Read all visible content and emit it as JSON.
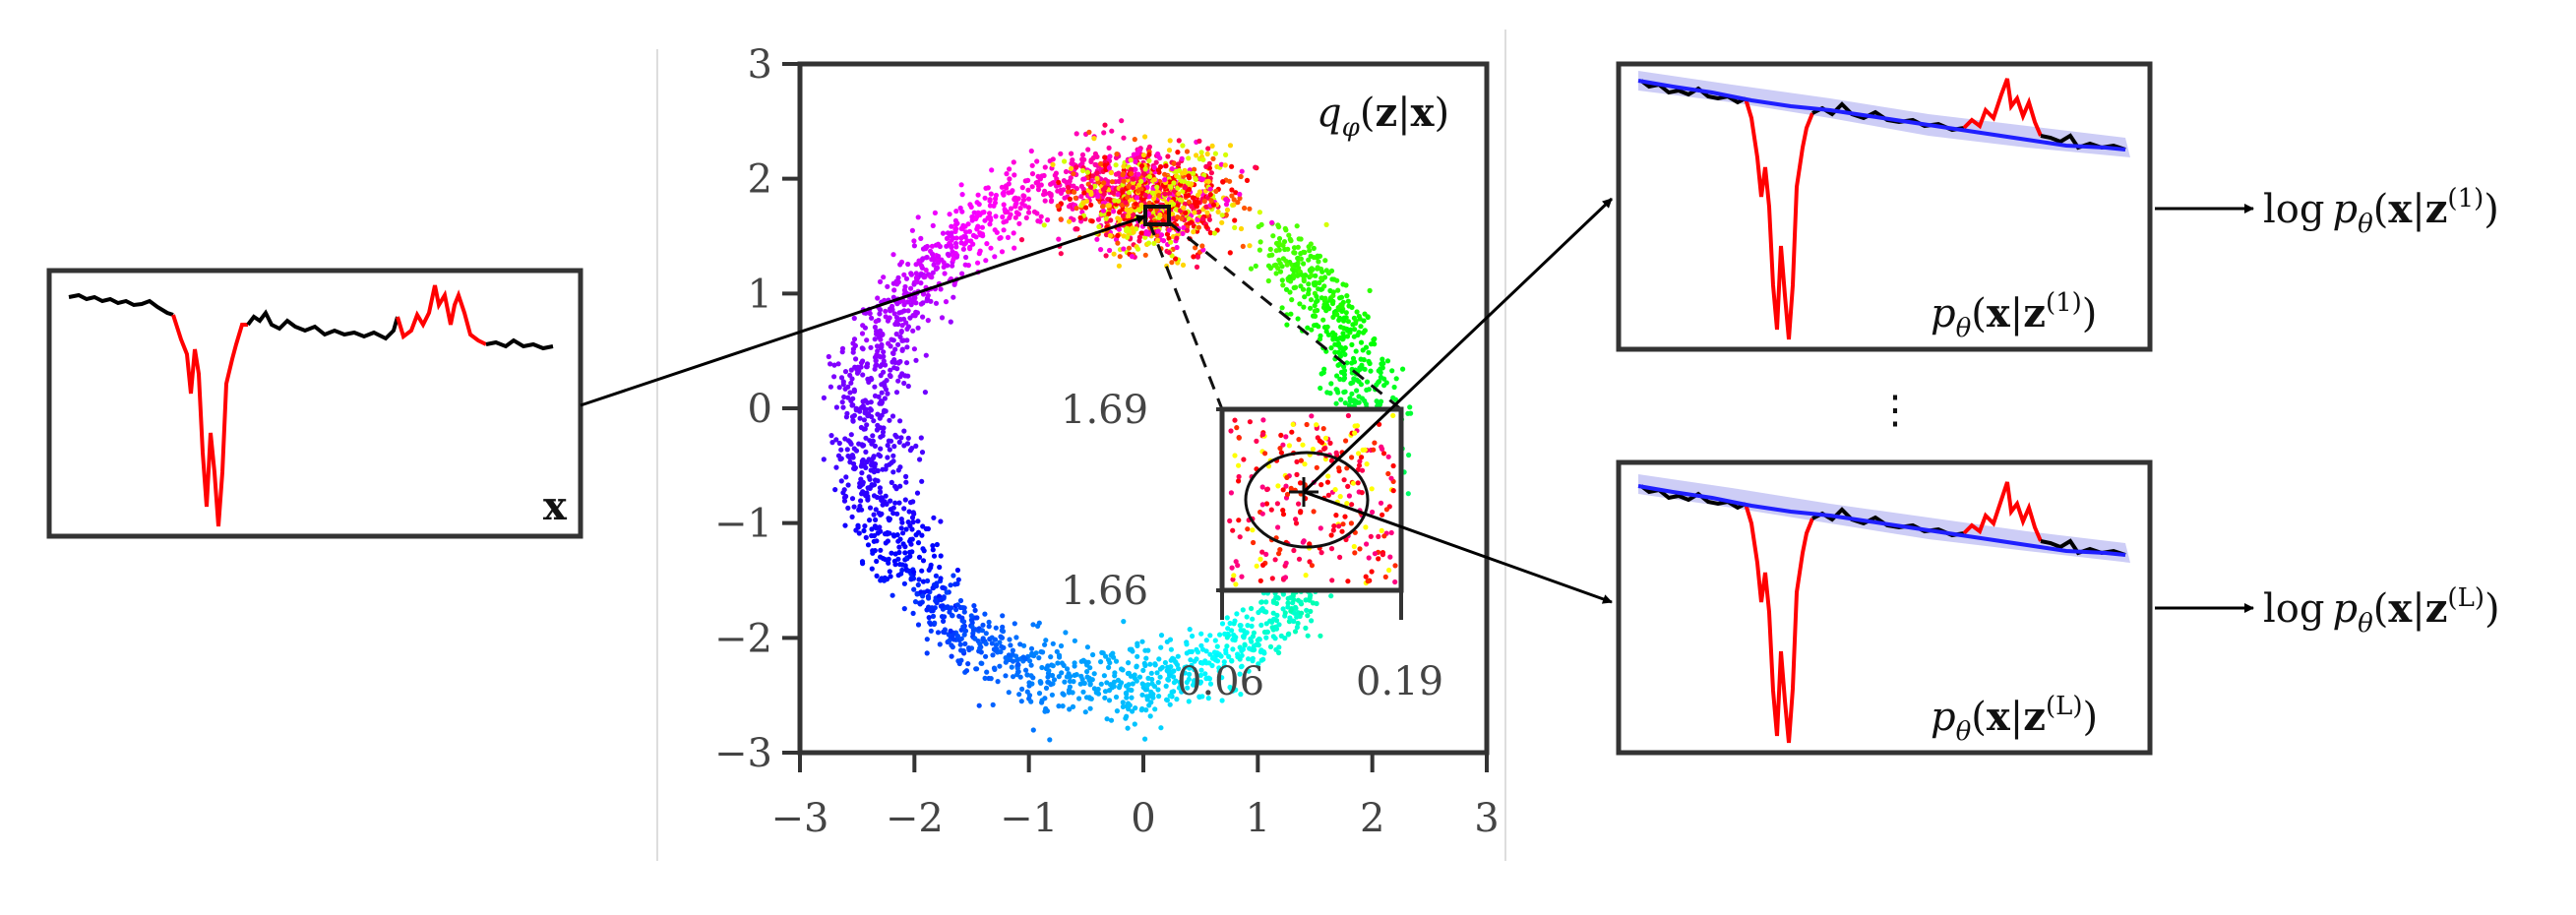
{
  "figure": {
    "input_label": "x",
    "latent_label": {
      "q": "q",
      "phi": "φ",
      "open": "(",
      "z": "z",
      "bar": "|",
      "x": "x",
      "close": ")"
    },
    "recon_top_label": {
      "p": "p",
      "theta": "θ",
      "open": "(",
      "x": "x",
      "bar": "|",
      "z": "z",
      "sup": "(1)",
      "close": ")"
    },
    "recon_bottom_label": {
      "p": "p",
      "theta": "θ",
      "open": "(",
      "x": "x",
      "bar": "|",
      "z": "z",
      "sup": "(L)",
      "close": ")"
    },
    "output_top": {
      "log": "log",
      "p": "p",
      "theta": "θ",
      "open": "(",
      "x": "x",
      "bar": "|",
      "z": "z",
      "sup": "(1)",
      "close": ")"
    },
    "output_bottom": {
      "log": "log",
      "p": "p",
      "theta": "θ",
      "open": "(",
      "x": "x",
      "bar": "|",
      "z": "z",
      "sup": "(L)",
      "close": ")"
    },
    "vertical_dots": "⋮"
  },
  "chart_data": [
    {
      "type": "scatter",
      "name": "latent-space",
      "title": "qφ(z|x)",
      "xlim": [
        -3,
        3
      ],
      "ylim": [
        -3,
        3
      ],
      "xticks": [
        "−3",
        "−2",
        "−1",
        "0",
        "1",
        "2",
        "3"
      ],
      "yticks": [
        "3",
        "2",
        "1",
        "0",
        "−1",
        "−2",
        "−3"
      ],
      "colormap": "hue (red → yellow → green → cyan → blue → magenta)",
      "shape": "ring of encoded windows, radius approx. 2.2, centred near (0, 0); dense cluster around (0.1, 1.7)",
      "grid": false,
      "legend": "none"
    },
    {
      "type": "scatter",
      "name": "zoom-inset",
      "xticks": [
        "0.06",
        "0.19"
      ],
      "yticks": [
        "1.69",
        "1.66"
      ],
      "xlim": [
        0.06,
        0.19
      ],
      "ylim": [
        1.66,
        1.69
      ]
    },
    {
      "type": "line",
      "name": "input-window",
      "series": [
        {
          "name": "normal",
          "color": "#000000",
          "values": [
            0.9,
            0.92,
            0.9,
            0.88,
            0.85,
            0.83,
            0.82,
            0.82,
            0.81,
            0.8,
            0.79,
            0.78,
            0.78,
            0.77,
            0.75,
            0.74,
            0.73,
            0.72,
            0.7,
            0.7,
            0.69
          ]
        },
        {
          "name": "anomaly-spike",
          "color": "#ff0000",
          "values": [
            0.82,
            -0.1,
            0.45,
            -0.5,
            0.4,
            -0.9,
            0.3,
            0.7
          ]
        },
        {
          "name": "anomaly-bump",
          "color": "#ff0000",
          "values": [
            0.72,
            0.8,
            0.76,
            0.95,
            0.78,
            0.9,
            0.7,
            0.68
          ]
        }
      ]
    }
  ]
}
